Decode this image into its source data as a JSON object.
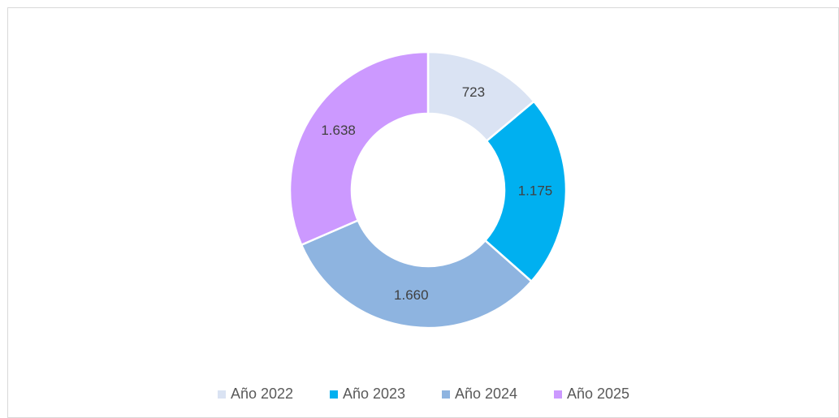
{
  "chart_data": {
    "type": "donut",
    "categories": [
      "Año 2022",
      "Año 2023",
      "Año 2024",
      "Año 2025"
    ],
    "values": [
      723,
      1175,
      1660,
      1638
    ],
    "value_labels": [
      "723",
      "1.175",
      "1.660",
      "1.638"
    ],
    "colors": [
      "#dae3f3",
      "#00b0f0",
      "#8eb4e0",
      "#cc99ff"
    ],
    "legend": "bottom"
  }
}
